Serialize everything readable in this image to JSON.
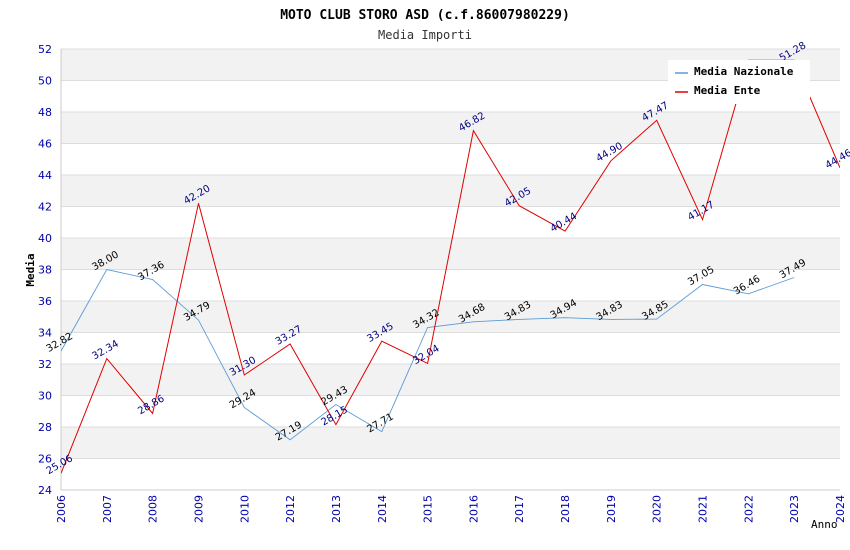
{
  "chart_data": {
    "type": "line",
    "title": "MOTO CLUB STORO ASD (c.f.86007980229)",
    "subtitle": "Media Importi",
    "ylabel": "Media",
    "xlabel": "Anno",
    "ylim": [
      24,
      52
    ],
    "yticks": [
      24,
      26,
      28,
      30,
      32,
      34,
      36,
      38,
      40,
      42,
      44,
      46,
      48,
      50,
      52
    ],
    "categories": [
      "2006",
      "2007",
      "2008",
      "2009",
      "2010",
      "2012",
      "2013",
      "2014",
      "2015",
      "2016",
      "2017",
      "2018",
      "2019",
      "2020",
      "2021",
      "2022",
      "2023",
      "2024"
    ],
    "grid": true,
    "legend": "top-right",
    "series": [
      {
        "name": "Media Nazionale",
        "color": "#5b9bd5",
        "values": [
          32.82,
          38.0,
          37.36,
          34.79,
          29.24,
          27.19,
          29.43,
          27.71,
          34.32,
          34.68,
          34.83,
          34.94,
          34.83,
          34.85,
          37.05,
          36.46,
          37.49,
          null
        ],
        "labels": [
          "32.82",
          "38.00",
          "37.36",
          "34.79",
          "29.24",
          "27.19",
          "29.43",
          "27.71",
          "34.32",
          "34.68",
          "34.83",
          "34.94",
          "34.83",
          "34.85",
          "37.05",
          "36.46",
          "37.49",
          ""
        ]
      },
      {
        "name": "Media Ente",
        "color": "#e00000",
        "values": [
          25.06,
          32.34,
          28.86,
          42.2,
          31.3,
          33.27,
          28.15,
          33.45,
          32.04,
          46.82,
          42.05,
          40.44,
          44.9,
          47.47,
          41.17,
          51.28,
          51.28,
          44.46
        ],
        "labels": [
          "25.06",
          "32.34",
          "28.86",
          "42.20",
          "31.30",
          "33.27",
          "28.15",
          "33.45",
          "32.04",
          "46.82",
          "42.05",
          "40.44",
          "44.90",
          "47.47",
          "41.17",
          "",
          "51.28",
          "44.46"
        ]
      }
    ]
  }
}
